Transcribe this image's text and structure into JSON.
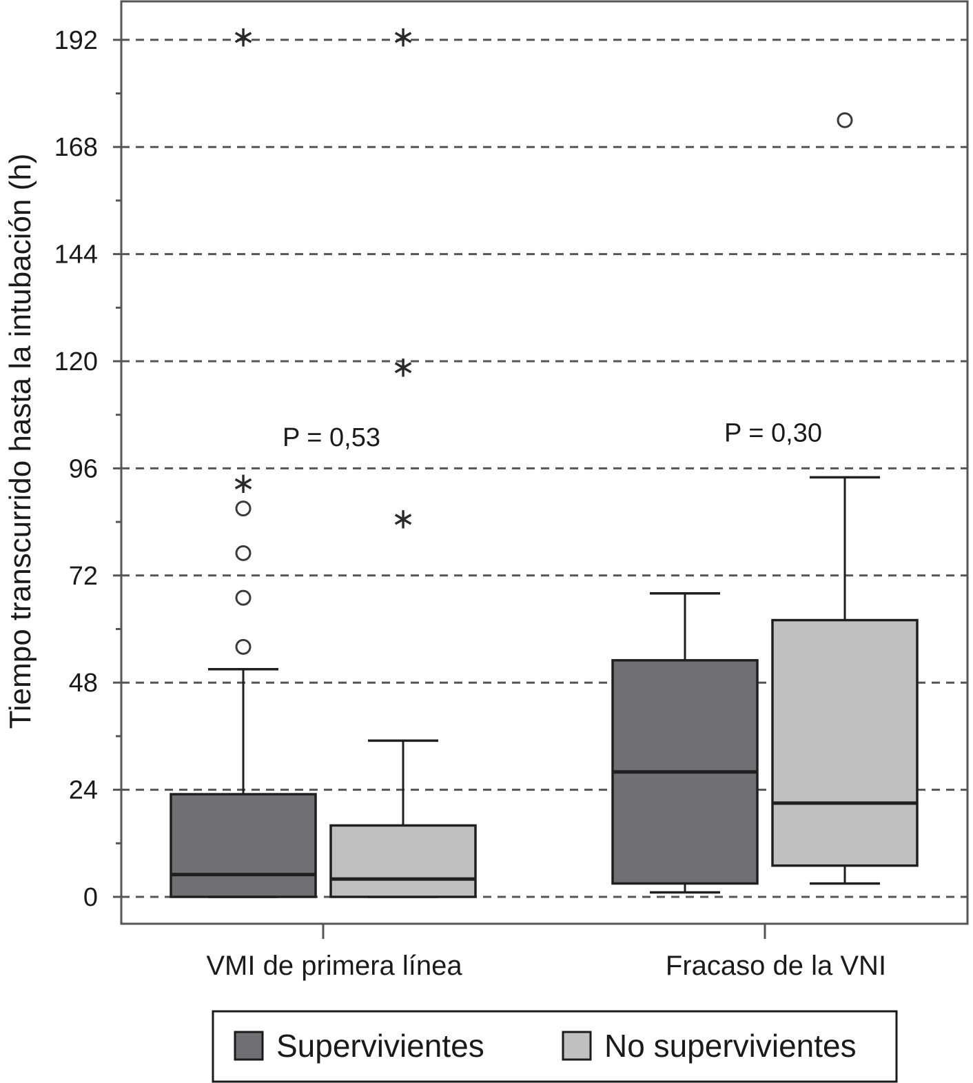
{
  "chart_data": {
    "type": "boxplot",
    "ylabel": "Tiempo transcurrido hasta la intubación (h)",
    "xlabel": "",
    "ylim": [
      -6,
      202
    ],
    "yticks": [
      0,
      24,
      48,
      72,
      96,
      120,
      144,
      168,
      192
    ],
    "grid": "horizontal dashed",
    "categories": [
      "VMI de primera línea",
      "Fracaso de la VNI"
    ],
    "series": [
      {
        "name": "Supervivientes",
        "color": "#6f7073",
        "boxes": [
          {
            "category": "VMI de primera línea",
            "whisker_low": 0,
            "q1": 0,
            "median": 5,
            "q3": 23,
            "whisker_high": 51,
            "outliers": [
              {
                "value": 56,
                "marker": "circle"
              },
              {
                "value": 67,
                "marker": "circle"
              },
              {
                "value": 77,
                "marker": "circle"
              },
              {
                "value": 87,
                "marker": "circle"
              },
              {
                "value": 93,
                "marker": "star"
              },
              {
                "value": 193,
                "marker": "star"
              }
            ]
          },
          {
            "category": "Fracaso de la VNI",
            "whisker_low": 1,
            "q1": 3,
            "median": 28,
            "q3": 53,
            "whisker_high": 68,
            "outliers": []
          }
        ]
      },
      {
        "name": "No supervivientes",
        "color": "#bfc0c2",
        "boxes": [
          {
            "category": "VMI de primera línea",
            "whisker_low": 0,
            "q1": 0,
            "median": 4,
            "q3": 16,
            "whisker_high": 35,
            "outliers": [
              {
                "value": 85,
                "marker": "star"
              },
              {
                "value": 119,
                "marker": "star"
              },
              {
                "value": 193,
                "marker": "star"
              }
            ]
          },
          {
            "category": "Fracaso de la VNI",
            "whisker_low": 3,
            "q1": 7,
            "median": 21,
            "q3": 62,
            "whisker_high": 94,
            "outliers": [
              {
                "value": 174,
                "marker": "circle"
              }
            ]
          }
        ]
      }
    ],
    "annotations": [
      {
        "category": "VMI de primera línea",
        "text": "P = 0,53",
        "y": 103
      },
      {
        "category": "Fracaso de la VNI",
        "text": "P = 0,30",
        "y": 104
      }
    ],
    "legend": {
      "position": "bottom",
      "items": [
        "Supervivientes",
        "No supervivientes"
      ]
    }
  }
}
